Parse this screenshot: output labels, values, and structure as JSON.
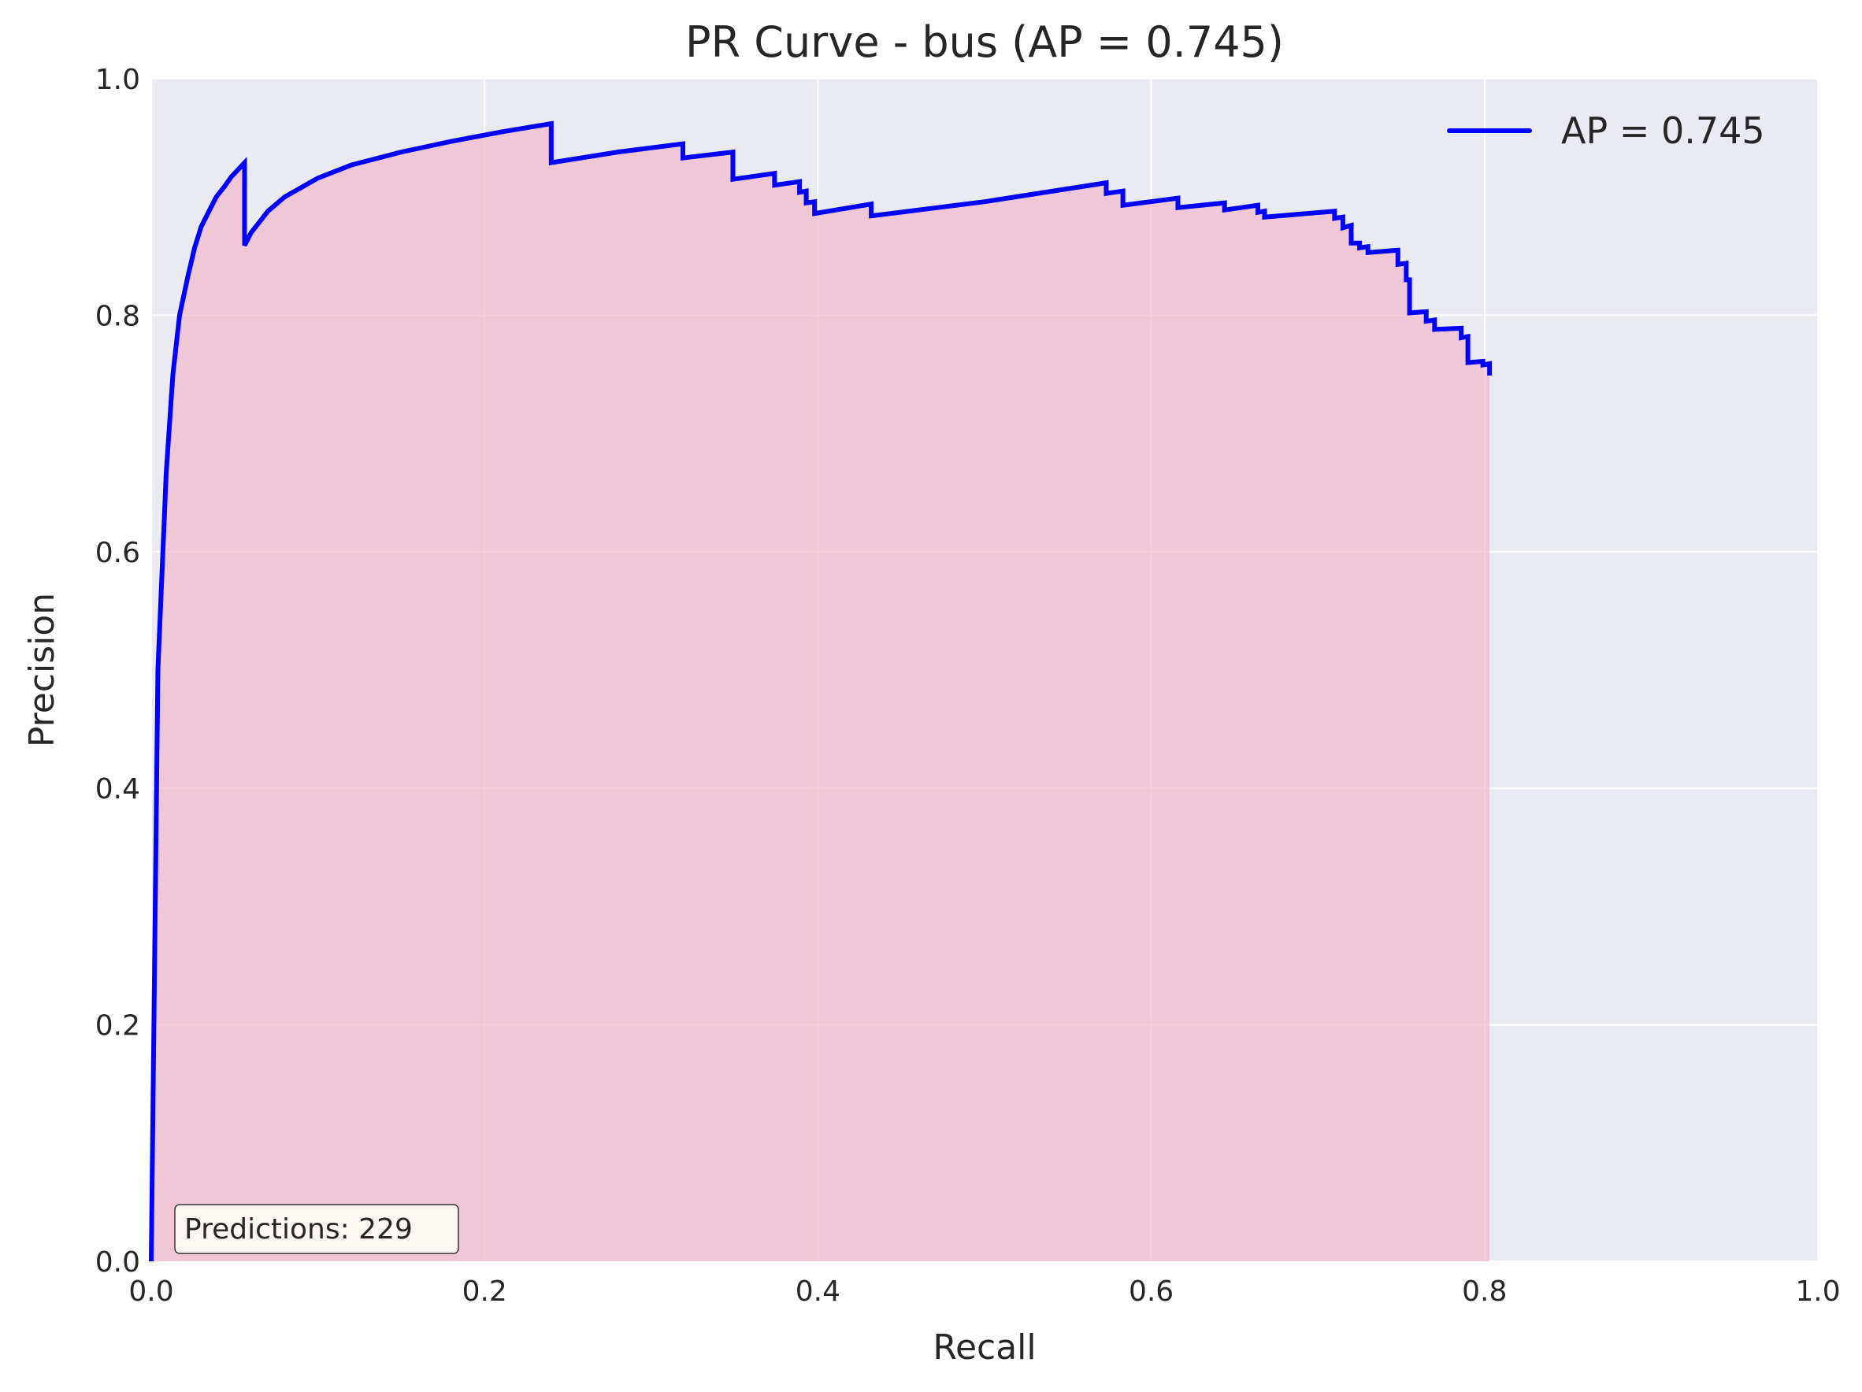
{
  "chart_data": {
    "type": "area",
    "title": "PR Curve - bus (AP = 0.745)",
    "xlabel": "Recall",
    "ylabel": "Precision",
    "xlim": [
      0.0,
      1.0
    ],
    "ylim": [
      0.0,
      1.0
    ],
    "xticks": [
      "0.0",
      "0.2",
      "0.4",
      "0.6",
      "0.8",
      "1.0"
    ],
    "yticks": [
      "0.0",
      "0.2",
      "0.4",
      "0.6",
      "0.8",
      "1.0"
    ],
    "grid": true,
    "legend_position": "top-right",
    "annotation": "Predictions: 229",
    "series": [
      {
        "name": "AP = 0.745",
        "color": "#0000ff",
        "fill_color": "#f2b8cc",
        "x": [
          0.0,
          0.004,
          0.009,
          0.013,
          0.017,
          0.022,
          0.026,
          0.03,
          0.035,
          0.039,
          0.044,
          0.048,
          0.052,
          0.056,
          0.056,
          0.06,
          0.07,
          0.08,
          0.1,
          0.12,
          0.15,
          0.18,
          0.21,
          0.24,
          0.24,
          0.28,
          0.319,
          0.319,
          0.349,
          0.349,
          0.374,
          0.374,
          0.389,
          0.389,
          0.393,
          0.393,
          0.398,
          0.398,
          0.432,
          0.432,
          0.5,
          0.573,
          0.573,
          0.583,
          0.583,
          0.616,
          0.616,
          0.644,
          0.644,
          0.664,
          0.664,
          0.668,
          0.668,
          0.71,
          0.71,
          0.715,
          0.715,
          0.72,
          0.72,
          0.725,
          0.725,
          0.73,
          0.73,
          0.748,
          0.748,
          0.753,
          0.753,
          0.755,
          0.755,
          0.765,
          0.765,
          0.77,
          0.77,
          0.786,
          0.786,
          0.79,
          0.79,
          0.799,
          0.799,
          0.803,
          0.803
        ],
        "y": [
          0.0,
          0.5,
          0.667,
          0.75,
          0.8,
          0.833,
          0.857,
          0.875,
          0.889,
          0.9,
          0.909,
          0.917,
          0.923,
          0.929,
          0.859,
          0.87,
          0.888,
          0.9,
          0.916,
          0.927,
          0.938,
          0.947,
          0.955,
          0.962,
          0.929,
          0.938,
          0.945,
          0.933,
          0.938,
          0.915,
          0.92,
          0.91,
          0.913,
          0.904,
          0.905,
          0.895,
          0.896,
          0.886,
          0.894,
          0.884,
          0.896,
          0.912,
          0.903,
          0.905,
          0.893,
          0.899,
          0.891,
          0.895,
          0.889,
          0.893,
          0.887,
          0.888,
          0.883,
          0.888,
          0.882,
          0.883,
          0.874,
          0.876,
          0.861,
          0.861,
          0.857,
          0.858,
          0.853,
          0.855,
          0.843,
          0.844,
          0.83,
          0.83,
          0.802,
          0.803,
          0.795,
          0.796,
          0.788,
          0.789,
          0.781,
          0.782,
          0.76,
          0.761,
          0.758,
          0.759,
          0.749
        ]
      }
    ]
  }
}
